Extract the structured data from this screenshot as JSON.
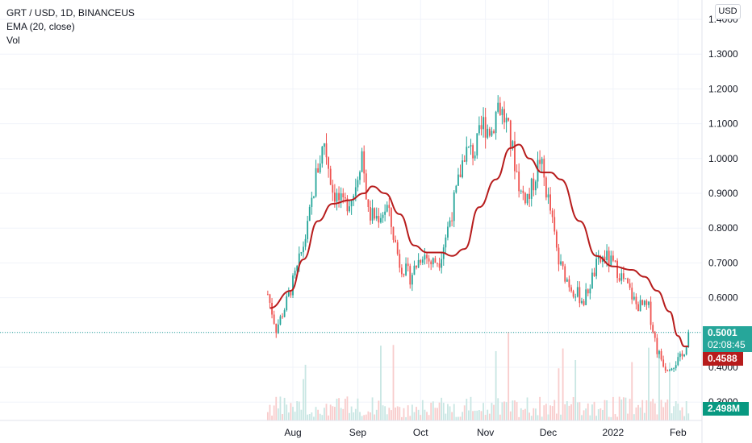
{
  "header": {
    "symbol_line": "GRT / USD, 1D, BINANCEUS",
    "indicator_line": "EMA (20, close)",
    "volume_line": "Vol"
  },
  "currency_button": "USD",
  "price_tags": {
    "last_price": "0.5001",
    "countdown": "02:08:45",
    "ema_value": "0.4588",
    "volume_value": "2.498M"
  },
  "colors": {
    "up": "#26a69a",
    "down": "#ef5350",
    "ema": "#b71c1c",
    "volume_up": "#c8e6e3",
    "volume_down": "#f8cccc",
    "last_price": "#26a69a",
    "volume_tag": "#089981"
  },
  "chart_data": {
    "type": "candlestick",
    "y_axis": {
      "ticks": [
        "1.4000",
        "1.3000",
        "1.2000",
        "1.1000",
        "1.0000",
        "0.9000",
        "0.8000",
        "0.7000",
        "0.6000",
        "0.5000",
        "0.4000",
        "0.3000"
      ],
      "range": [
        0.26,
        1.42
      ]
    },
    "x_axis": {
      "ticks": [
        "Aug",
        "Sep",
        "Oct",
        "Nov",
        "Dec",
        "2022",
        "Feb"
      ]
    },
    "trend": [
      [
        "2021-07-20",
        0.61
      ],
      [
        "2021-07-24",
        0.51
      ],
      [
        "2021-07-28",
        0.57
      ],
      [
        "2021-08-03",
        0.68
      ],
      [
        "2021-08-08",
        0.8
      ],
      [
        "2021-08-12",
        0.95
      ],
      [
        "2021-08-16",
        1.05
      ],
      [
        "2021-08-20",
        0.91
      ],
      [
        "2021-08-25",
        0.86
      ],
      [
        "2021-08-30",
        0.9
      ],
      [
        "2021-09-03",
        1.02
      ],
      [
        "2021-09-06",
        0.84
      ],
      [
        "2021-09-10",
        0.83
      ],
      [
        "2021-09-15",
        0.86
      ],
      [
        "2021-09-21",
        0.7
      ],
      [
        "2021-09-26",
        0.66
      ],
      [
        "2021-10-02",
        0.73
      ],
      [
        "2021-10-06",
        0.7
      ],
      [
        "2021-10-10",
        0.71
      ],
      [
        "2021-10-14",
        0.8
      ],
      [
        "2021-10-18",
        0.9
      ],
      [
        "2021-10-22",
        1.02
      ],
      [
        "2021-10-27",
        1.02
      ],
      [
        "2021-10-31",
        1.1
      ],
      [
        "2021-11-04",
        1.08
      ],
      [
        "2021-11-07",
        1.16
      ],
      [
        "2021-11-11",
        1.1
      ],
      [
        "2021-11-14",
        1.02
      ],
      [
        "2021-11-18",
        0.9
      ],
      [
        "2021-11-22",
        0.89
      ],
      [
        "2021-11-27",
        1.0
      ],
      [
        "2021-12-02",
        0.85
      ],
      [
        "2021-12-06",
        0.7
      ],
      [
        "2021-12-12",
        0.63
      ],
      [
        "2021-12-18",
        0.59
      ],
      [
        "2021-12-24",
        0.69
      ],
      [
        "2021-12-28",
        0.72
      ],
      [
        "2022-01-03",
        0.68
      ],
      [
        "2022-01-08",
        0.63
      ],
      [
        "2022-01-12",
        0.58
      ],
      [
        "2022-01-18",
        0.57
      ],
      [
        "2022-01-22",
        0.45
      ],
      [
        "2022-01-26",
        0.4
      ],
      [
        "2022-01-30",
        0.41
      ],
      [
        "2022-02-03",
        0.43
      ],
      [
        "2022-02-05",
        0.47
      ],
      [
        "2022-02-06",
        0.5
      ]
    ],
    "ema_20": [
      [
        "2021-07-21",
        0.57
      ],
      [
        "2021-07-31",
        0.62
      ],
      [
        "2021-08-06",
        0.71
      ],
      [
        "2021-08-13",
        0.82
      ],
      [
        "2021-08-20",
        0.87
      ],
      [
        "2021-08-28",
        0.88
      ],
      [
        "2021-09-04",
        0.9
      ],
      [
        "2021-09-08",
        0.92
      ],
      [
        "2021-09-14",
        0.9
      ],
      [
        "2021-09-21",
        0.84
      ],
      [
        "2021-09-28",
        0.75
      ],
      [
        "2021-10-04",
        0.73
      ],
      [
        "2021-10-11",
        0.73
      ],
      [
        "2021-10-16",
        0.72
      ],
      [
        "2021-10-22",
        0.74
      ],
      [
        "2021-10-29",
        0.86
      ],
      [
        "2021-11-06",
        0.94
      ],
      [
        "2021-11-13",
        1.03
      ],
      [
        "2021-11-17",
        1.04
      ],
      [
        "2021-11-22",
        1.0
      ],
      [
        "2021-11-28",
        0.96
      ],
      [
        "2021-12-02",
        0.96
      ],
      [
        "2021-12-07",
        0.94
      ],
      [
        "2021-12-16",
        0.82
      ],
      [
        "2021-12-24",
        0.72
      ],
      [
        "2022-01-01",
        0.69
      ],
      [
        "2022-01-10",
        0.68
      ],
      [
        "2022-01-16",
        0.66
      ],
      [
        "2022-01-22",
        0.62
      ],
      [
        "2022-01-28",
        0.56
      ],
      [
        "2022-02-01",
        0.49
      ],
      [
        "2022-02-04",
        0.46
      ],
      [
        "2022-02-06",
        0.46
      ]
    ]
  }
}
